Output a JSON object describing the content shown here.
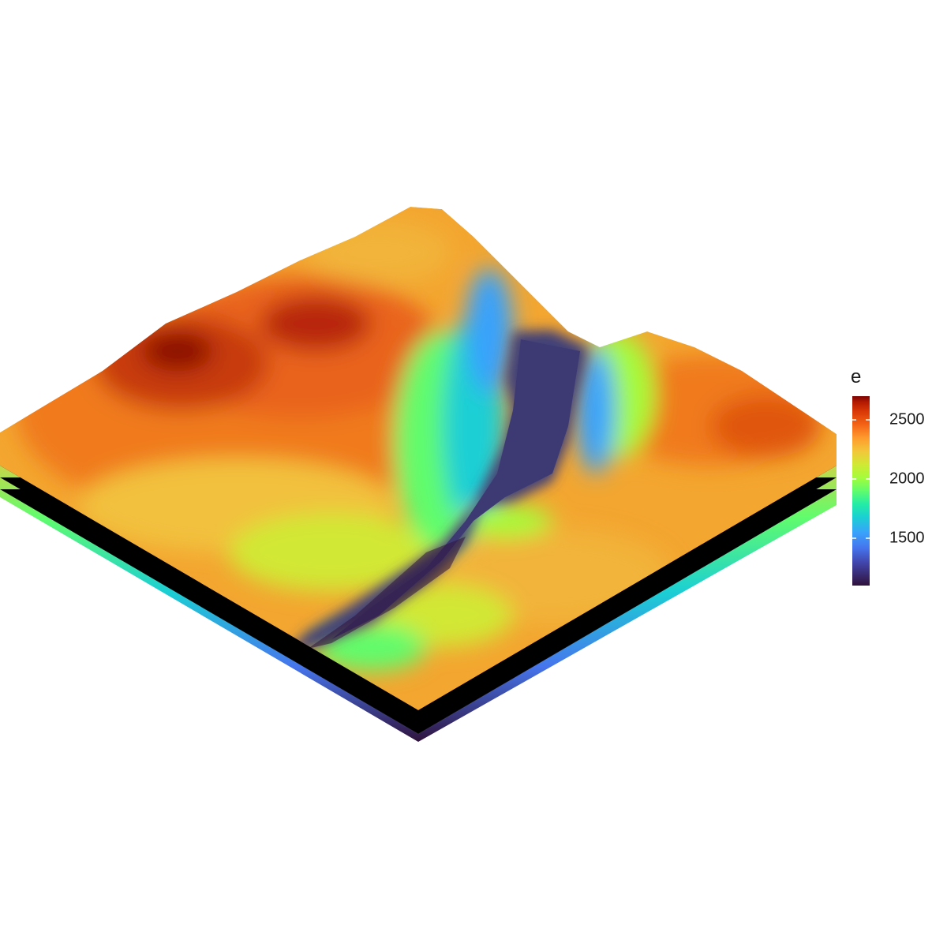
{
  "legend": {
    "title": "e",
    "min": 1100,
    "max": 2700,
    "ticks": [
      "1500",
      "2000",
      "2500"
    ],
    "tick_values": [
      1500,
      2000,
      2500
    ]
  },
  "colors": {
    "palette": [
      "#30123b",
      "#4145ab",
      "#4675ed",
      "#39a2fc",
      "#1bcfd4",
      "#24eca6",
      "#61fc6c",
      "#a4fc3b",
      "#d1e834",
      "#f3c63a",
      "#fe9b2d",
      "#f36315",
      "#d93806",
      "#b11901",
      "#7a0402"
    ],
    "river": "#3f3f78",
    "background": "#ffffff"
  }
}
